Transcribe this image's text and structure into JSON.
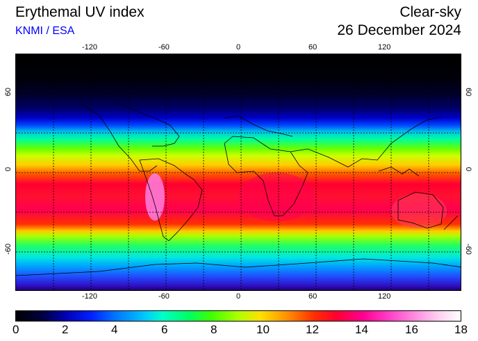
{
  "header": {
    "title": "Erythemal UV index",
    "org": "KNMI / ESA",
    "product": "Clear-sky",
    "date": "26 December 2024"
  },
  "map": {
    "lon_ticks": [
      "-120",
      "-60",
      "0",
      "60",
      "120"
    ],
    "lat_ticks": [
      "60",
      "0",
      "-60"
    ]
  },
  "colorbar": {
    "labels": [
      "0",
      "2",
      "4",
      "6",
      "8",
      "10",
      "12",
      "14",
      "16",
      "18"
    ],
    "min": 0,
    "max": 18
  }
}
